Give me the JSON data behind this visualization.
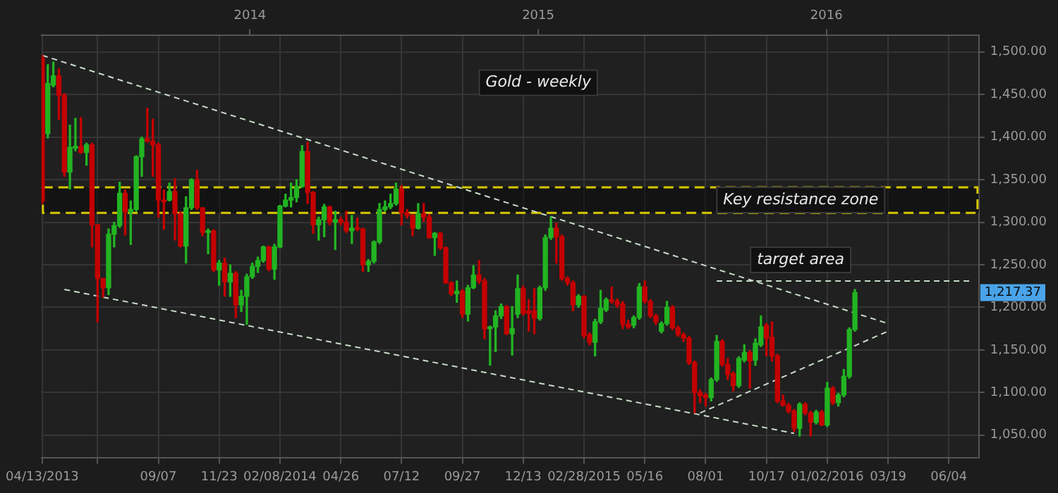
{
  "chart_data": {
    "type": "candlestick",
    "title": "Gold - weekly",
    "marker": "none",
    "grid": true,
    "xlim": [
      "2013-04-12",
      "2016-07-12"
    ],
    "xticks": [
      {
        "value": "2013-04-13",
        "label": "04/13/2013"
      },
      {
        "value": "2013-06-22",
        "label": null
      },
      {
        "value": "2013-09-07",
        "label": "09/07"
      },
      {
        "value": "2013-11-23",
        "label": "11/23"
      },
      {
        "value": "2014-02-08",
        "label": "02/08/2014"
      },
      {
        "value": "2014-04-26",
        "label": "04/26"
      },
      {
        "value": "2014-07-12",
        "label": "07/12"
      },
      {
        "value": "2014-09-27",
        "label": "09/27"
      },
      {
        "value": "2014-12-13",
        "label": "12/13"
      },
      {
        "value": "2015-02-28",
        "label": "02/28/2015"
      },
      {
        "value": "2015-05-16",
        "label": "05/16"
      },
      {
        "value": "2015-08-01",
        "label": "08/01"
      },
      {
        "value": "2015-10-17",
        "label": "10/17"
      },
      {
        "value": "2016-01-02",
        "label": "01/02/2016"
      },
      {
        "value": "2016-03-19",
        "label": "03/19"
      },
      {
        "value": "2016-06-04",
        "label": "06/04"
      }
    ],
    "x2lim": [
      "2013-04-12",
      "2016-07-12"
    ],
    "x2ticks": [
      {
        "value": "2014-01-01",
        "label": "2014"
      },
      {
        "value": "2015-01-01",
        "label": "2015"
      },
      {
        "value": "2016-01-01",
        "label": "2016"
      }
    ],
    "ylim": [
      1023,
      1520
    ],
    "yticks": [
      {
        "value": 1050,
        "label": "1,050.00"
      },
      {
        "value": 1100,
        "label": "1,100.00"
      },
      {
        "value": 1150,
        "label": "1,150.00"
      },
      {
        "value": 1200,
        "label": "1,200.00"
      },
      {
        "value": 1250,
        "label": "1,250.00"
      },
      {
        "value": 1300,
        "label": "1,300.00"
      },
      {
        "value": 1350,
        "label": "1,350.00"
      },
      {
        "value": 1400,
        "label": "1,400.00"
      },
      {
        "value": 1450,
        "label": "1,450.00"
      },
      {
        "value": 1500,
        "label": "1,500.00"
      }
    ],
    "bands": [
      {
        "axis": "y",
        "from": 1311,
        "to": 1341,
        "label": "Key resistance zone"
      }
    ],
    "series": [
      {
        "type": "line",
        "x": [
          "2013-04-13",
          "2016-03-19"
        ],
        "values": [
          1496,
          1181
        ],
        "color": "#c8dcc8",
        "line_style": "dashed"
      },
      {
        "type": "line",
        "x": [
          "2013-05-11",
          "2015-11-21"
        ],
        "values": [
          1221,
          1052
        ],
        "color": "#c8dcc8",
        "line_style": "dashed"
      },
      {
        "type": "line",
        "x": [
          "2015-07-25",
          "2016-03-19"
        ],
        "values": [
          1076,
          1172
        ],
        "color": "#c8dcc8",
        "line_style": "dashed"
      },
      {
        "type": "line",
        "name": "target area",
        "x": [
          "2015-08-15",
          "2016-07-02"
        ],
        "values": [
          1231,
          1231
        ],
        "color": "#c8dcc8",
        "line_style": "dashed"
      },
      {
        "value_labels": [
          null,
          null,
          null,
          null,
          null,
          null,
          null,
          null,
          null,
          null,
          null,
          null,
          null,
          null,
          null,
          null,
          null,
          null,
          null,
          null,
          null,
          null,
          null,
          null,
          null,
          null,
          null,
          null,
          null,
          null,
          null,
          null,
          null,
          null,
          null,
          null,
          null,
          null,
          null,
          null,
          null,
          null,
          null,
          null,
          null,
          null,
          null,
          null,
          null,
          null,
          null,
          null,
          null,
          null,
          null,
          null,
          null,
          null,
          null,
          null,
          null,
          null,
          null,
          null,
          null,
          null,
          null,
          null,
          null,
          null,
          null,
          null,
          null,
          null,
          null,
          null,
          null,
          null,
          null,
          null,
          null,
          null,
          null,
          null,
          null,
          null,
          null,
          null,
          null,
          null,
          null,
          null,
          null,
          null,
          null,
          null,
          null,
          null,
          null,
          null,
          null,
          null,
          null,
          null,
          null,
          null,
          null,
          null,
          null,
          null,
          null,
          null,
          null,
          null,
          null,
          null,
          null,
          null,
          null,
          null,
          null,
          null,
          null,
          null,
          null,
          null,
          null,
          null,
          null,
          null,
          null,
          null,
          null,
          null,
          null,
          null,
          null,
          null,
          null,
          null,
          null,
          null,
          null,
          null,
          null,
          null,
          null,
          "1,217.37"
        ],
        "x": [
          "2013-04-13",
          "2013-04-20",
          "2013-04-27",
          "2013-05-04",
          "2013-05-11",
          "2013-05-18",
          "2013-05-25",
          "2013-06-01",
          "2013-06-08",
          "2013-06-15",
          "2013-06-22",
          "2013-06-29",
          "2013-07-06",
          "2013-07-13",
          "2013-07-20",
          "2013-07-27",
          "2013-08-03",
          "2013-08-10",
          "2013-08-17",
          "2013-08-24",
          "2013-08-31",
          "2013-09-07",
          "2013-09-14",
          "2013-09-21",
          "2013-09-28",
          "2013-10-05",
          "2013-10-12",
          "2013-10-19",
          "2013-10-26",
          "2013-11-02",
          "2013-11-09",
          "2013-11-16",
          "2013-11-23",
          "2013-11-30",
          "2013-12-07",
          "2013-12-14",
          "2013-12-21",
          "2013-12-28",
          "2014-01-04",
          "2014-01-11",
          "2014-01-18",
          "2014-01-25",
          "2014-02-01",
          "2014-02-08",
          "2014-02-15",
          "2014-02-22",
          "2014-03-01",
          "2014-03-08",
          "2014-03-15",
          "2014-03-22",
          "2014-03-29",
          "2014-04-05",
          "2014-04-12",
          "2014-04-19",
          "2014-04-26",
          "2014-05-03",
          "2014-05-10",
          "2014-05-17",
          "2014-05-24",
          "2014-05-31",
          "2014-06-07",
          "2014-06-14",
          "2014-06-21",
          "2014-06-28",
          "2014-07-05",
          "2014-07-12",
          "2014-07-19",
          "2014-07-26",
          "2014-08-02",
          "2014-08-09",
          "2014-08-16",
          "2014-08-23",
          "2014-08-30",
          "2014-09-06",
          "2014-09-13",
          "2014-09-20",
          "2014-09-27",
          "2014-10-04",
          "2014-10-11",
          "2014-10-18",
          "2014-10-25",
          "2014-11-01",
          "2014-11-08",
          "2014-11-15",
          "2014-11-22",
          "2014-11-29",
          "2014-12-06",
          "2014-12-13",
          "2014-12-20",
          "2014-12-27",
          "2015-01-03",
          "2015-01-10",
          "2015-01-17",
          "2015-01-24",
          "2015-01-31",
          "2015-02-07",
          "2015-02-14",
          "2015-02-21",
          "2015-02-28",
          "2015-03-07",
          "2015-03-14",
          "2015-03-21",
          "2015-03-28",
          "2015-04-04",
          "2015-04-11",
          "2015-04-18",
          "2015-04-25",
          "2015-05-02",
          "2015-05-09",
          "2015-05-16",
          "2015-05-23",
          "2015-05-30",
          "2015-06-06",
          "2015-06-13",
          "2015-06-20",
          "2015-06-27",
          "2015-07-04",
          "2015-07-11",
          "2015-07-18",
          "2015-07-25",
          "2015-08-01",
          "2015-08-08",
          "2015-08-15",
          "2015-08-22",
          "2015-08-29",
          "2015-09-05",
          "2015-09-12",
          "2015-09-19",
          "2015-09-26",
          "2015-10-03",
          "2015-10-10",
          "2015-10-17",
          "2015-10-24",
          "2015-10-31",
          "2015-11-07",
          "2015-11-14",
          "2015-11-21",
          "2015-11-28",
          "2015-12-05",
          "2015-12-12",
          "2015-12-19",
          "2015-12-26",
          "2016-01-02",
          "2016-01-09",
          "2016-01-16",
          "2016-01-23",
          "2016-01-30",
          "2016-02-06"
        ],
        "ohlc": [
          [
            1493,
            1496,
            1322,
            1325
          ],
          [
            1404,
            1485,
            1399,
            1463
          ],
          [
            1461,
            1488,
            1459,
            1472
          ],
          [
            1472,
            1480,
            1421,
            1449
          ],
          [
            1449,
            1451,
            1354,
            1359
          ],
          [
            1359,
            1414,
            1339,
            1388
          ],
          [
            1387,
            1422,
            1384,
            1389
          ],
          [
            1389,
            1423,
            1381,
            1382
          ],
          [
            1382,
            1393,
            1367,
            1391
          ],
          [
            1391,
            1393,
            1271,
            1297
          ],
          [
            1297,
            1297,
            1183,
            1234
          ],
          [
            1234,
            1234,
            1212,
            1223
          ],
          [
            1223,
            1292,
            1215,
            1286
          ],
          [
            1286,
            1300,
            1271,
            1296
          ],
          [
            1296,
            1347,
            1294,
            1334
          ],
          [
            1334,
            1338,
            1285,
            1312
          ],
          [
            1312,
            1325,
            1274,
            1315
          ],
          [
            1315,
            1378,
            1313,
            1377
          ],
          [
            1377,
            1400,
            1354,
            1398
          ],
          [
            1398,
            1434,
            1394,
            1395
          ],
          [
            1395,
            1421,
            1354,
            1391
          ],
          [
            1391,
            1393,
            1306,
            1326
          ],
          [
            1326,
            1338,
            1292,
            1324
          ],
          [
            1326,
            1346,
            1325,
            1336
          ],
          [
            1336,
            1351,
            1279,
            1310
          ],
          [
            1310,
            1312,
            1271,
            1272
          ],
          [
            1272,
            1330,
            1252,
            1317
          ],
          [
            1317,
            1351,
            1315,
            1350
          ],
          [
            1350,
            1361,
            1315,
            1317
          ],
          [
            1317,
            1317,
            1284,
            1288
          ],
          [
            1288,
            1292,
            1263,
            1290
          ],
          [
            1290,
            1291,
            1242,
            1244
          ],
          [
            1244,
            1255,
            1226,
            1252
          ],
          [
            1252,
            1258,
            1213,
            1230
          ],
          [
            1230,
            1250,
            1213,
            1240
          ],
          [
            1240,
            1242,
            1188,
            1203
          ],
          [
            1203,
            1220,
            1195,
            1213
          ],
          [
            1213,
            1239,
            1180,
            1236
          ],
          [
            1236,
            1252,
            1234,
            1248
          ],
          [
            1248,
            1259,
            1241,
            1255
          ],
          [
            1255,
            1272,
            1253,
            1271
          ],
          [
            1271,
            1272,
            1243,
            1245
          ],
          [
            1245,
            1274,
            1233,
            1271
          ],
          [
            1271,
            1320,
            1270,
            1319
          ],
          [
            1319,
            1333,
            1318,
            1326
          ],
          [
            1326,
            1346,
            1318,
            1329
          ],
          [
            1329,
            1350,
            1324,
            1342
          ],
          [
            1342,
            1390,
            1341,
            1383
          ],
          [
            1383,
            1394,
            1322,
            1335
          ],
          [
            1335,
            1336,
            1287,
            1297
          ],
          [
            1297,
            1306,
            1279,
            1303
          ],
          [
            1303,
            1321,
            1283,
            1318
          ],
          [
            1318,
            1319,
            1297,
            1300
          ],
          [
            1300,
            1313,
            1268,
            1303
          ],
          [
            1303,
            1306,
            1297,
            1300
          ],
          [
            1300,
            1313,
            1288,
            1290
          ],
          [
            1290,
            1308,
            1275,
            1293
          ],
          [
            1293,
            1305,
            1290,
            1292
          ],
          [
            1292,
            1293,
            1242,
            1250
          ],
          [
            1250,
            1256,
            1242,
            1254
          ],
          [
            1254,
            1278,
            1252,
            1277
          ],
          [
            1277,
            1322,
            1275,
            1315
          ],
          [
            1315,
            1325,
            1313,
            1318
          ],
          [
            1318,
            1333,
            1316,
            1322
          ],
          [
            1322,
            1346,
            1320,
            1339
          ],
          [
            1339,
            1343,
            1297,
            1311
          ],
          [
            1311,
            1315,
            1305,
            1308
          ],
          [
            1308,
            1309,
            1284,
            1293
          ],
          [
            1293,
            1322,
            1292,
            1310
          ],
          [
            1310,
            1322,
            1301,
            1306
          ],
          [
            1306,
            1309,
            1281,
            1282
          ],
          [
            1282,
            1288,
            1261,
            1287
          ],
          [
            1287,
            1288,
            1268,
            1270
          ],
          [
            1270,
            1271,
            1228,
            1229
          ],
          [
            1229,
            1230,
            1214,
            1216
          ],
          [
            1216,
            1231,
            1206,
            1219
          ],
          [
            1219,
            1221,
            1188,
            1192
          ],
          [
            1192,
            1226,
            1184,
            1223
          ],
          [
            1223,
            1249,
            1222,
            1238
          ],
          [
            1238,
            1255,
            1228,
            1231
          ],
          [
            1231,
            1234,
            1163,
            1175
          ],
          [
            1175,
            1178,
            1132,
            1177
          ],
          [
            1177,
            1196,
            1148,
            1190
          ],
          [
            1190,
            1204,
            1187,
            1201
          ],
          [
            1201,
            1202,
            1168,
            1169
          ],
          [
            1169,
            1201,
            1144,
            1175
          ],
          [
            1192,
            1238,
            1188,
            1222
          ],
          [
            1222,
            1225,
            1191,
            1193
          ],
          [
            1196,
            1209,
            1172,
            1193
          ],
          [
            1196,
            1222,
            1169,
            1187
          ],
          [
            1187,
            1225,
            1185,
            1223
          ],
          [
            1223,
            1285,
            1220,
            1282
          ],
          [
            1282,
            1306,
            1280,
            1293
          ],
          [
            1293,
            1299,
            1252,
            1283
          ],
          [
            1283,
            1285,
            1232,
            1234
          ],
          [
            1234,
            1236,
            1226,
            1229
          ],
          [
            1229,
            1231,
            1196,
            1203
          ],
          [
            1203,
            1215,
            1200,
            1213
          ],
          [
            1213,
            1214,
            1164,
            1167
          ],
          [
            1168,
            1170,
            1156,
            1159
          ],
          [
            1159,
            1186,
            1143,
            1183
          ],
          [
            1183,
            1220,
            1181,
            1199
          ],
          [
            1197,
            1211,
            1195,
            1209
          ],
          [
            1209,
            1224,
            1205,
            1207
          ],
          [
            1207,
            1210,
            1200,
            1203
          ],
          [
            1204,
            1207,
            1175,
            1180
          ],
          [
            1180,
            1185,
            1175,
            1177
          ],
          [
            1179,
            1190,
            1176,
            1188
          ],
          [
            1188,
            1228,
            1186,
            1224
          ],
          [
            1224,
            1231,
            1205,
            1207
          ],
          [
            1207,
            1209,
            1188,
            1190
          ],
          [
            1190,
            1192,
            1180,
            1183
          ],
          [
            1172,
            1183,
            1170,
            1181
          ],
          [
            1181,
            1207,
            1179,
            1200
          ],
          [
            1200,
            1202,
            1174,
            1176
          ],
          [
            1176,
            1178,
            1166,
            1168
          ],
          [
            1168,
            1170,
            1160,
            1164
          ],
          [
            1164,
            1166,
            1133,
            1135
          ],
          [
            1135,
            1137,
            1076,
            1100
          ],
          [
            1100,
            1103,
            1088,
            1096
          ],
          [
            1097,
            1099,
            1084,
            1094
          ],
          [
            1094,
            1117,
            1090,
            1115
          ],
          [
            1115,
            1167,
            1113,
            1160
          ],
          [
            1160,
            1162,
            1131,
            1133
          ],
          [
            1133,
            1140,
            1115,
            1121
          ],
          [
            1122,
            1124,
            1102,
            1108
          ],
          [
            1108,
            1142,
            1106,
            1140
          ],
          [
            1138,
            1156,
            1136,
            1147
          ],
          [
            1147,
            1149,
            1105,
            1137
          ],
          [
            1138,
            1163,
            1132,
            1158
          ],
          [
            1156,
            1190,
            1154,
            1177
          ],
          [
            1179,
            1181,
            1143,
            1164
          ],
          [
            1165,
            1183,
            1137,
            1143
          ],
          [
            1143,
            1145,
            1088,
            1090
          ],
          [
            1090,
            1097,
            1084,
            1085
          ],
          [
            1085,
            1087,
            1076,
            1078
          ],
          [
            1078,
            1080,
            1054,
            1058
          ],
          [
            1058,
            1088,
            1049,
            1086
          ],
          [
            1086,
            1088,
            1074,
            1076
          ],
          [
            1076,
            1078,
            1049,
            1065
          ],
          [
            1065,
            1079,
            1063,
            1077
          ],
          [
            1077,
            1079,
            1061,
            1062
          ],
          [
            1062,
            1112,
            1060,
            1105
          ],
          [
            1105,
            1107,
            1086,
            1088
          ],
          [
            1088,
            1099,
            1084,
            1097
          ],
          [
            1097,
            1127,
            1095,
            1119
          ],
          [
            1119,
            1176,
            1117,
            1174
          ],
          [
            1174,
            1221,
            1172,
            1217.37
          ]
        ],
        "colors": [
          "#c40000",
          "#22b422",
          "#22b422",
          "#c40000",
          "#c40000",
          "#22b422",
          "#22b422",
          "#c40000",
          "#22b422",
          "#c40000",
          "#c40000",
          "#c40000",
          "#22b422",
          "#22b422",
          "#22b422",
          "#c40000",
          "#22b422",
          "#22b422",
          "#22b422",
          "#c40000",
          "#c40000",
          "#c40000",
          "#c40000",
          "#22b422",
          "#c40000",
          "#c40000",
          "#22b422",
          "#22b422",
          "#c40000",
          "#c40000",
          "#22b422",
          "#c40000",
          "#22b422",
          "#c40000",
          "#22b422",
          "#c40000",
          "#22b422",
          "#22b422",
          "#22b422",
          "#22b422",
          "#22b422",
          "#c40000",
          "#22b422",
          "#22b422",
          "#22b422",
          "#22b422",
          "#22b422",
          "#22b422",
          "#c40000",
          "#c40000",
          "#22b422",
          "#22b422",
          "#c40000",
          "#22b422",
          "#c40000",
          "#c40000",
          "#22b422",
          "#c40000",
          "#c40000",
          "#22b422",
          "#22b422",
          "#22b422",
          "#22b422",
          "#22b422",
          "#22b422",
          "#c40000",
          "#c40000",
          "#c40000",
          "#22b422",
          "#c40000",
          "#c40000",
          "#22b422",
          "#c40000",
          "#c40000",
          "#c40000",
          "#22b422",
          "#c40000",
          "#22b422",
          "#22b422",
          "#c40000",
          "#c40000",
          "#22b422",
          "#22b422",
          "#22b422",
          "#c40000",
          "#22b422",
          "#22b422",
          "#c40000",
          "#c40000",
          "#c40000",
          "#22b422",
          "#22b422",
          "#22b422",
          "#c40000",
          "#c40000",
          "#c40000",
          "#c40000",
          "#22b422",
          "#c40000",
          "#c40000",
          "#22b422",
          "#22b422",
          "#22b422",
          "#c40000",
          "#c40000",
          "#c40000",
          "#c40000",
          "#22b422",
          "#22b422",
          "#c40000",
          "#c40000",
          "#c40000",
          "#22b422",
          "#22b422",
          "#c40000",
          "#c40000",
          "#c40000",
          "#c40000",
          "#c40000",
          "#c40000",
          "#c40000",
          "#22b422",
          "#22b422",
          "#c40000",
          "#c40000",
          "#c40000",
          "#22b422",
          "#22b422",
          "#c40000",
          "#22b422",
          "#22b422",
          "#c40000",
          "#c40000",
          "#c40000",
          "#c40000",
          "#c40000",
          "#c40000",
          "#22b422",
          "#c40000",
          "#c40000",
          "#22b422",
          "#c40000",
          "#22b422",
          "#c40000",
          "#22b422",
          "#22b422",
          "#22b422",
          "#22b422"
        ]
      }
    ]
  }
}
